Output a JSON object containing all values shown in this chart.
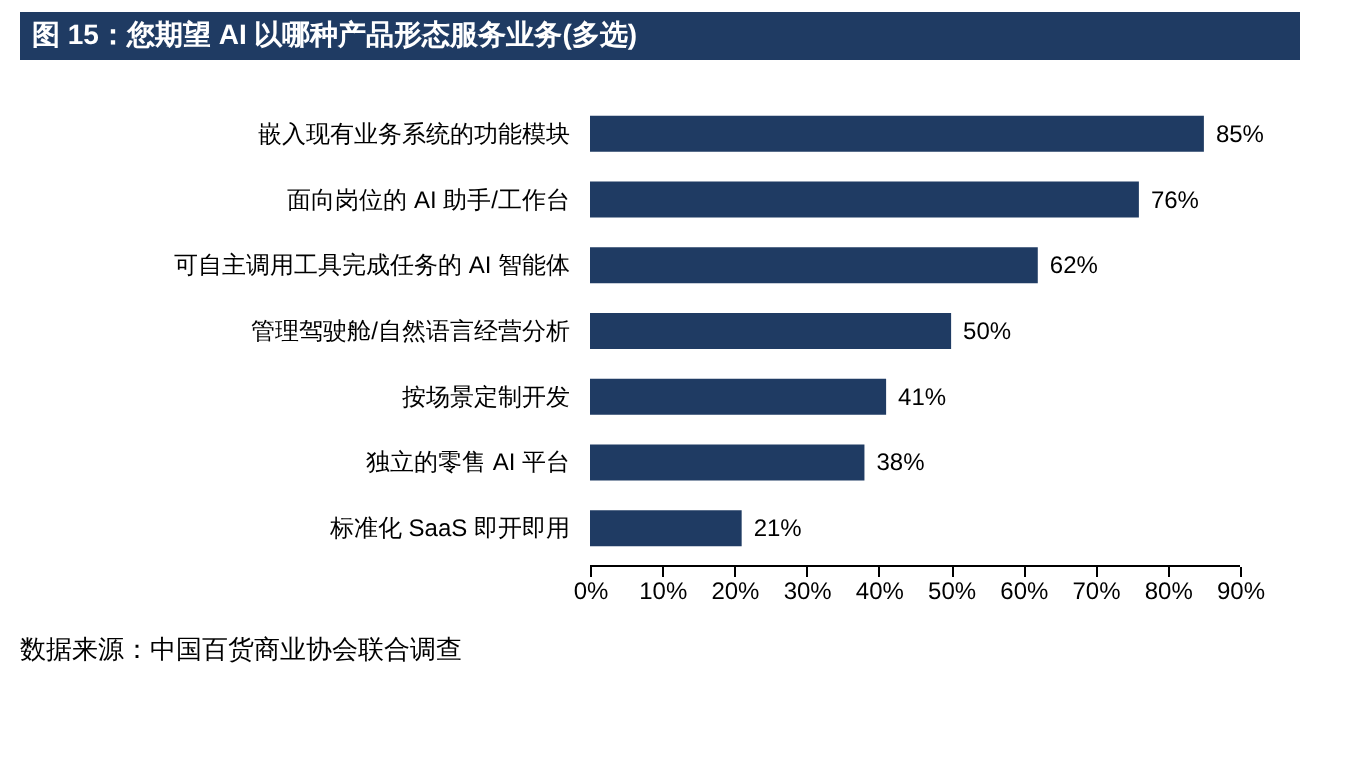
{
  "chart_data": {
    "type": "bar",
    "orientation": "horizontal",
    "title": "图 15：您期望 AI 以哪种产品形态服务业务(多选)",
    "categories": [
      "嵌入现有业务系统的功能模块",
      "面向岗位的 AI 助手/工作台",
      "可自主调用工具完成任务的 AI 智能体",
      "管理驾驶舱/自然语言经营分析",
      "按场景定制开发",
      "独立的零售 AI 平台",
      "标准化 SaaS 即开即用"
    ],
    "values": [
      85,
      76,
      62,
      50,
      41,
      38,
      21
    ],
    "value_labels": [
      "85%",
      "76%",
      "62%",
      "50%",
      "41%",
      "38%",
      "21%"
    ],
    "color": "#1f3b63",
    "xlim": [
      0,
      90
    ],
    "xticks": [
      {
        "value": 0,
        "label": "0%"
      },
      {
        "value": 10,
        "label": "10%"
      },
      {
        "value": 20,
        "label": "20%"
      },
      {
        "value": 30,
        "label": "30%"
      },
      {
        "value": 40,
        "label": "40%"
      },
      {
        "value": 50,
        "label": "50%"
      },
      {
        "value": 60,
        "label": "60%"
      },
      {
        "value": 70,
        "label": "70%"
      },
      {
        "value": 80,
        "label": "80%"
      },
      {
        "value": 90,
        "label": "90%"
      }
    ],
    "grid": false,
    "legend": false,
    "annotations": [
      "数据来源：中国百货商业协会联合调查"
    ]
  }
}
